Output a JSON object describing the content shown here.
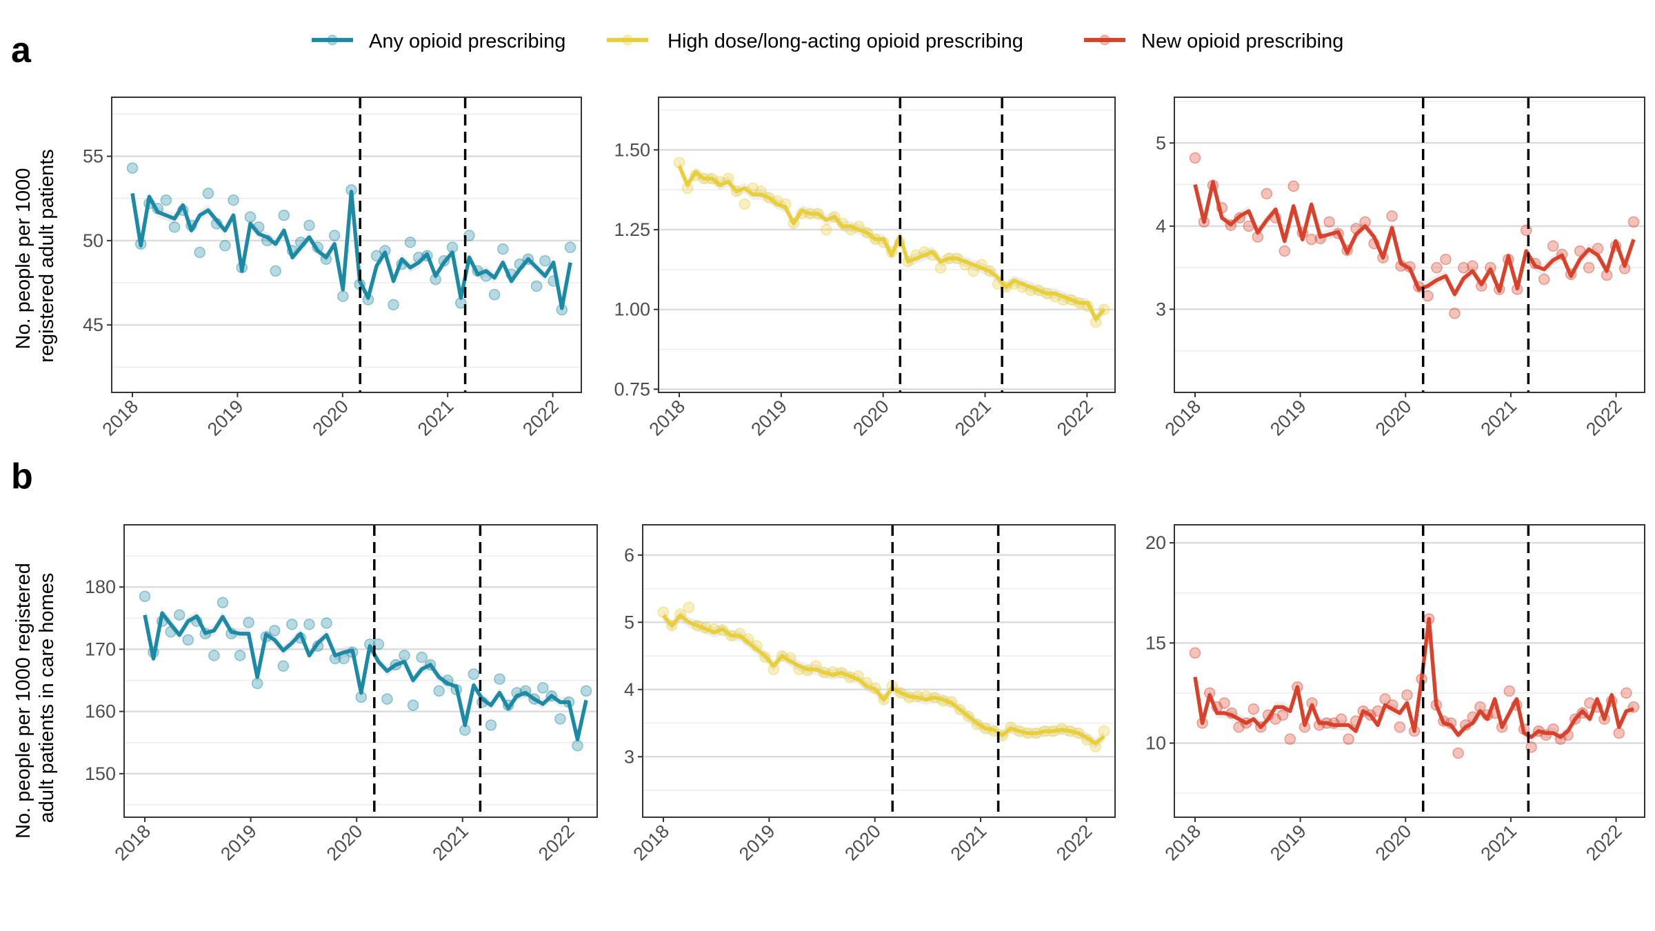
{
  "legend": [
    {
      "label": "Any opioid prescribing",
      "color": "#1b8aa5"
    },
    {
      "label": "High dose/long-acting opioid prescribing",
      "color": "#e8cf3a"
    },
    {
      "label": "New opioid prescribing",
      "color": "#d9412b"
    }
  ],
  "rows": [
    {
      "label": "a",
      "ylabel": [
        "No. people per 1000",
        "registered adult patients"
      ]
    },
    {
      "label": "b",
      "ylabel": [
        "No. people per 1000 registered",
        "adult patients in care homes"
      ]
    }
  ],
  "chart_data": [
    {
      "type": "line",
      "panel": "a1",
      "series_index": 0,
      "x_start": "2018-01",
      "x_end": "2022-03",
      "xticks": [
        "2018",
        "2019",
        "2020",
        "2021",
        "2022"
      ],
      "vlines": [
        "2020-03",
        "2021-03"
      ],
      "ylim": [
        41,
        58.5
      ],
      "yticks": [
        45,
        50,
        55
      ],
      "series": [
        {
          "name": "Any opioid prescribing",
          "fitted": [
            52.8,
            49.7,
            52.6,
            51.7,
            51.5,
            51.3,
            52.1,
            50.6,
            51.5,
            51.8,
            51.2,
            50.6,
            51.5,
            48.2,
            51.0,
            50.4,
            50.2,
            49.8,
            50.6,
            49.0,
            49.6,
            50.2,
            49.4,
            49.0,
            49.8,
            47.1,
            52.9,
            47.6,
            46.6,
            48.5,
            49.3,
            47.6,
            48.9,
            48.4,
            48.7,
            49.2,
            47.9,
            48.7,
            49.3,
            46.6,
            49.0,
            48.0,
            48.2,
            47.8,
            48.7,
            47.6,
            48.3,
            48.9,
            48.4,
            47.9,
            48.7,
            46.0,
            48.7
          ],
          "observed": [
            54.3,
            49.8,
            52.2,
            51.9,
            52.4,
            50.8,
            51.8,
            50.9,
            49.3,
            52.8,
            51.0,
            49.7,
            52.4,
            48.4,
            51.4,
            50.8,
            50.0,
            48.2,
            51.5,
            49.4,
            49.9,
            50.9,
            49.6,
            48.9,
            50.3,
            46.7,
            53.0,
            47.4,
            46.5,
            49.1,
            49.4,
            46.2,
            48.6,
            49.9,
            49.0,
            49.1,
            47.7,
            48.8,
            49.6,
            46.3,
            50.3,
            48.2,
            47.9,
            46.8,
            49.5,
            48.0,
            48.6,
            48.9,
            47.3,
            48.8,
            47.6,
            45.9,
            49.6
          ]
        }
      ]
    },
    {
      "type": "line",
      "panel": "a2",
      "series_index": 1,
      "x_start": "2018-01",
      "x_end": "2022-03",
      "xticks": [
        "2018",
        "2019",
        "2020",
        "2021",
        "2022"
      ],
      "vlines": [
        "2020-03",
        "2021-03"
      ],
      "ylim": [
        0.74,
        1.665
      ],
      "yticks": [
        0.75,
        1.0,
        1.25,
        1.5
      ],
      "series": [
        {
          "name": "High dose/long-acting opioid prescribing",
          "fitted": [
            1.45,
            1.39,
            1.43,
            1.41,
            1.41,
            1.39,
            1.4,
            1.37,
            1.38,
            1.36,
            1.36,
            1.35,
            1.33,
            1.32,
            1.27,
            1.31,
            1.3,
            1.3,
            1.28,
            1.29,
            1.26,
            1.26,
            1.25,
            1.24,
            1.22,
            1.22,
            1.17,
            1.23,
            1.15,
            1.16,
            1.17,
            1.18,
            1.15,
            1.16,
            1.16,
            1.15,
            1.14,
            1.13,
            1.12,
            1.1,
            1.07,
            1.09,
            1.08,
            1.07,
            1.06,
            1.05,
            1.05,
            1.04,
            1.03,
            1.02,
            1.02,
            0.97,
            1.0
          ],
          "observed": [
            1.46,
            1.38,
            1.42,
            1.41,
            1.41,
            1.4,
            1.41,
            1.37,
            1.33,
            1.38,
            1.37,
            1.35,
            1.34,
            1.33,
            1.27,
            1.3,
            1.3,
            1.3,
            1.25,
            1.29,
            1.27,
            1.25,
            1.26,
            1.24,
            1.22,
            1.21,
            1.18,
            1.21,
            1.15,
            1.17,
            1.18,
            1.17,
            1.13,
            1.16,
            1.16,
            1.14,
            1.12,
            1.14,
            1.12,
            1.08,
            1.07,
            1.08,
            1.07,
            1.06,
            1.06,
            1.05,
            1.04,
            1.03,
            1.03,
            1.02,
            1.01,
            0.96,
            1.0
          ]
        }
      ]
    },
    {
      "type": "line",
      "panel": "a3",
      "series_index": 2,
      "x_start": "2018-01",
      "x_end": "2022-03",
      "xticks": [
        "2018",
        "2019",
        "2020",
        "2021",
        "2022"
      ],
      "vlines": [
        "2020-03",
        "2021-03"
      ],
      "ylim": [
        2.0,
        5.55
      ],
      "yticks": [
        3,
        4,
        5
      ],
      "series": [
        {
          "name": "New opioid prescribing",
          "fitted": [
            4.5,
            4.05,
            4.53,
            4.1,
            4.02,
            4.12,
            4.18,
            3.92,
            4.07,
            4.2,
            3.82,
            4.24,
            3.84,
            4.26,
            3.87,
            3.9,
            3.93,
            3.68,
            3.9,
            4.0,
            3.87,
            3.62,
            3.98,
            3.55,
            3.49,
            3.24,
            3.28,
            3.35,
            3.4,
            3.18,
            3.37,
            3.46,
            3.3,
            3.48,
            3.22,
            3.64,
            3.25,
            3.7,
            3.52,
            3.48,
            3.59,
            3.65,
            3.4,
            3.6,
            3.72,
            3.65,
            3.46,
            3.82,
            3.52,
            3.84
          ],
          "observed": [
            4.82,
            4.05,
            4.49,
            4.22,
            4.01,
            4.1,
            4.0,
            3.87,
            4.39,
            4.1,
            3.7,
            4.48,
            3.92,
            3.84,
            3.85,
            4.05,
            3.91,
            3.71,
            3.97,
            4.05,
            3.79,
            3.62,
            4.12,
            3.52,
            3.51,
            3.27,
            3.16,
            3.5,
            3.6,
            2.95,
            3.5,
            3.52,
            3.28,
            3.5,
            3.24,
            3.6,
            3.24,
            3.95,
            3.55,
            3.36,
            3.76,
            3.66,
            3.42,
            3.7,
            3.5,
            3.73,
            3.41,
            3.76,
            3.49,
            4.05
          ]
        }
      ]
    },
    {
      "type": "line",
      "panel": "b1",
      "series_index": 0,
      "x_start": "2018-01",
      "x_end": "2022-03",
      "xticks": [
        "2018",
        "2019",
        "2020",
        "2021",
        "2022"
      ],
      "vlines": [
        "2020-03",
        "2021-03"
      ],
      "ylim": [
        143,
        190
      ],
      "yticks": [
        150,
        160,
        170,
        180
      ],
      "series": [
        {
          "name": "Any opioid prescribing",
          "fitted": [
            175.5,
            168.5,
            175.8,
            174.0,
            172.3,
            174.5,
            175.3,
            172.6,
            173.0,
            175.2,
            172.8,
            172.5,
            172.5,
            165.5,
            172.4,
            171.5,
            169.8,
            171.0,
            172.5,
            169.0,
            171.0,
            172.3,
            169.0,
            169.5,
            169.8,
            163.0,
            170.5,
            168.0,
            166.5,
            167.5,
            168.0,
            165.0,
            166.8,
            167.5,
            165.5,
            164.5,
            164.0,
            157.8,
            164.2,
            162.0,
            161.0,
            163.0,
            160.5,
            162.5,
            163.0,
            162.0,
            161.2,
            162.5,
            161.5,
            161.5,
            155.5,
            161.8
          ],
          "observed": [
            178.5,
            169.5,
            174.5,
            172.8,
            175.5,
            171.5,
            174.5,
            172.5,
            169.0,
            177.5,
            172.5,
            169.0,
            174.3,
            164.5,
            172.0,
            173.0,
            167.3,
            174.0,
            171.8,
            174.0,
            170.5,
            174.2,
            168.5,
            168.5,
            169.5,
            162.3,
            170.8,
            170.8,
            162.0,
            167.5,
            169.0,
            161.0,
            168.7,
            167.5,
            163.3,
            165.0,
            163.5,
            157.0,
            166.0,
            161.5,
            157.8,
            165.2,
            161.0,
            163.0,
            163.3,
            162.0,
            163.8,
            162.5,
            158.8,
            161.5,
            154.5,
            163.3
          ]
        }
      ]
    },
    {
      "type": "line",
      "panel": "b2",
      "series_index": 1,
      "x_start": "2018-01",
      "x_end": "2022-03",
      "xticks": [
        "2018",
        "2019",
        "2020",
        "2021",
        "2022"
      ],
      "vlines": [
        "2020-03",
        "2021-03"
      ],
      "ylim": [
        2.1,
        6.45
      ],
      "yticks": [
        3,
        4,
        5,
        6
      ],
      "series": [
        {
          "name": "High dose/long-acting opioid prescribing",
          "fitted": [
            5.1,
            4.95,
            5.1,
            5.0,
            4.95,
            4.9,
            4.85,
            4.9,
            4.8,
            4.8,
            4.7,
            4.6,
            4.5,
            4.35,
            4.5,
            4.42,
            4.35,
            4.3,
            4.3,
            4.25,
            4.22,
            4.25,
            4.2,
            4.15,
            4.05,
            4.0,
            3.85,
            4.02,
            3.95,
            3.9,
            3.88,
            3.85,
            3.88,
            3.85,
            3.8,
            3.7,
            3.6,
            3.5,
            3.42,
            3.4,
            3.32,
            3.42,
            3.38,
            3.35,
            3.35,
            3.38,
            3.38,
            3.4,
            3.38,
            3.35,
            3.28,
            3.2,
            3.3
          ],
          "observed": [
            5.15,
            4.95,
            5.12,
            5.22,
            4.95,
            4.92,
            4.9,
            4.88,
            4.8,
            4.83,
            4.75,
            4.65,
            4.48,
            4.3,
            4.5,
            4.47,
            4.3,
            4.28,
            4.35,
            4.25,
            4.26,
            4.25,
            4.18,
            4.2,
            4.1,
            4.02,
            3.85,
            4.05,
            3.95,
            3.88,
            3.9,
            3.9,
            3.88,
            3.83,
            3.82,
            3.7,
            3.6,
            3.48,
            3.42,
            3.38,
            3.31,
            3.44,
            3.38,
            3.35,
            3.35,
            3.38,
            3.38,
            3.42,
            3.38,
            3.35,
            3.25,
            3.15,
            3.38
          ]
        }
      ]
    },
    {
      "type": "line",
      "panel": "b3",
      "series_index": 2,
      "x_start": "2018-01",
      "x_end": "2022-03",
      "xticks": [
        "2018",
        "2019",
        "2020",
        "2021",
        "2022"
      ],
      "vlines": [
        "2020-03",
        "2021-03"
      ],
      "ylim": [
        6.3,
        20.9
      ],
      "yticks": [
        10,
        15,
        20
      ],
      "series": [
        {
          "name": "New opioid prescribing",
          "fitted": [
            13.3,
            11.0,
            12.4,
            11.5,
            11.5,
            11.4,
            11.2,
            11.0,
            11.2,
            10.8,
            11.2,
            11.8,
            11.8,
            11.6,
            12.8,
            10.9,
            11.9,
            11.0,
            11.0,
            10.9,
            10.9,
            10.9,
            10.6,
            11.6,
            11.4,
            10.9,
            11.9,
            11.7,
            11.5,
            12.0,
            10.6,
            13.2,
            16.2,
            11.9,
            11.0,
            10.9,
            10.4,
            10.8,
            11.0,
            11.6,
            11.2,
            12.2,
            10.8,
            11.5,
            12.2,
            10.5,
            10.3,
            10.6,
            10.5,
            10.5,
            10.3,
            10.6,
            11.2,
            11.6,
            11.2,
            12.2,
            11.2,
            12.4,
            10.8,
            11.6,
            11.7
          ],
          "observed": [
            14.5,
            11.0,
            12.5,
            11.8,
            12.0,
            11.5,
            10.8,
            11.0,
            11.7,
            10.8,
            11.4,
            11.2,
            11.4,
            10.2,
            12.8,
            10.8,
            12.0,
            10.9,
            11.0,
            11.0,
            11.2,
            10.2,
            11.1,
            11.6,
            11.4,
            11.6,
            12.2,
            11.9,
            10.8,
            12.4,
            10.6,
            13.2,
            16.2,
            11.9,
            11.1,
            11.0,
            9.5,
            10.9,
            11.3,
            11.8,
            11.4,
            11.5,
            10.8,
            12.6,
            11.9,
            10.7,
            9.8,
            10.6,
            10.4,
            10.7,
            10.2,
            10.4,
            11.2,
            11.5,
            12.0,
            11.8,
            11.2,
            12.1,
            10.5,
            12.5,
            11.8
          ]
        }
      ]
    }
  ]
}
